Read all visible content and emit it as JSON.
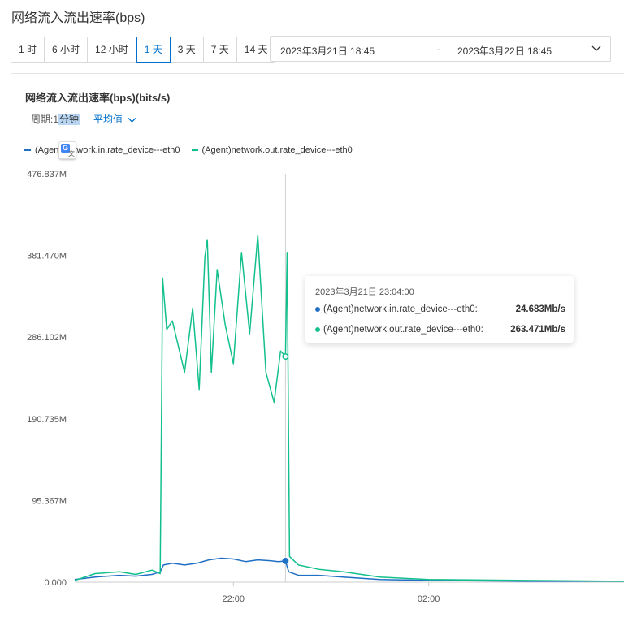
{
  "page_title": "网络流入流出速率(bps)",
  "time_ranges": [
    {
      "label": "1 时",
      "active": false
    },
    {
      "label": "6 小时",
      "active": false
    },
    {
      "label": "12 小时",
      "active": false
    },
    {
      "label": "1 天",
      "active": true
    },
    {
      "label": "3 天",
      "active": false
    },
    {
      "label": "7 天",
      "active": false
    },
    {
      "label": "14 天",
      "active": false
    }
  ],
  "date_range": {
    "start": "2023年3月21日 18:45",
    "separator": "-",
    "end": "2023年3月22日 18:45"
  },
  "chart_title": "网络流入流出速率(bps)(bits/s)",
  "period": {
    "label": "周期:1",
    "value": "分钟"
  },
  "aggregation": "平均值",
  "colors": {
    "in": "#1f6fc5",
    "out": "#13c08d",
    "accent": "#0070cc"
  },
  "tooltip": {
    "time": "2023年3月21日 23:04:00",
    "rows": [
      {
        "name": "(Agent)network.in.rate_device---eth0:",
        "value": "24.683Mb/s"
      },
      {
        "name": "(Agent)network.out.rate_device---eth0:",
        "value": "263.471Mb/s"
      }
    ]
  },
  "chart_data": {
    "type": "line",
    "title": "网络流入流出速率(bps)(bits/s)",
    "ylabel": "",
    "xlabel": "",
    "ylim": [
      0,
      476.837
    ],
    "y_unit": "M",
    "y_ticks": [
      "0.000",
      "95.367M",
      "190.735M",
      "286.102M",
      "381.470M",
      "476.837M"
    ],
    "x_ticks": [
      "22:00",
      "02:00"
    ],
    "x_range": [
      "2023-03-21 18:45",
      "2023-03-22 06:00"
    ],
    "legend_position": "top-left",
    "grid": false,
    "series": [
      {
        "name": "(Agent)network.in.rate_device---eth0",
        "color": "#1f6fc5",
        "points": [
          [
            "2023-03-21 18:45",
            3
          ],
          [
            "2023-03-21 19:10",
            6
          ],
          [
            "2023-03-21 19:40",
            8
          ],
          [
            "2023-03-21 20:00",
            7
          ],
          [
            "2023-03-21 20:20",
            9
          ],
          [
            "2023-03-21 20:30",
            12
          ],
          [
            "2023-03-21 20:34",
            20
          ],
          [
            "2023-03-21 20:45",
            22
          ],
          [
            "2023-03-21 21:00",
            20
          ],
          [
            "2023-03-21 21:15",
            22
          ],
          [
            "2023-03-21 21:30",
            26
          ],
          [
            "2023-03-21 21:45",
            28
          ],
          [
            "2023-03-21 22:00",
            27
          ],
          [
            "2023-03-21 22:15",
            24
          ],
          [
            "2023-03-21 22:30",
            26
          ],
          [
            "2023-03-21 22:45",
            25
          ],
          [
            "2023-03-21 22:55",
            24
          ],
          [
            "2023-03-21 23:04",
            24.683
          ],
          [
            "2023-03-21 23:08",
            12
          ],
          [
            "2023-03-21 23:20",
            8
          ],
          [
            "2023-03-21 23:45",
            8
          ],
          [
            "2023-03-22 00:15",
            6
          ],
          [
            "2023-03-22 01:00",
            3
          ],
          [
            "2023-03-22 02:00",
            2
          ],
          [
            "2023-03-22 04:00",
            1
          ],
          [
            "2023-03-22 06:00",
            1
          ]
        ]
      },
      {
        "name": "(Agent)network.out.rate_device---eth0",
        "color": "#13c08d",
        "points": [
          [
            "2023-03-21 18:45",
            2
          ],
          [
            "2023-03-21 19:10",
            10
          ],
          [
            "2023-03-21 19:40",
            12
          ],
          [
            "2023-03-21 20:00",
            9
          ],
          [
            "2023-03-21 20:20",
            14
          ],
          [
            "2023-03-21 20:30",
            10
          ],
          [
            "2023-03-21 20:33",
            355
          ],
          [
            "2023-03-21 20:38",
            295
          ],
          [
            "2023-03-21 20:45",
            305
          ],
          [
            "2023-03-21 21:00",
            245
          ],
          [
            "2023-03-21 21:10",
            320
          ],
          [
            "2023-03-21 21:18",
            225
          ],
          [
            "2023-03-21 21:25",
            380
          ],
          [
            "2023-03-21 21:28",
            400
          ],
          [
            "2023-03-21 21:33",
            245
          ],
          [
            "2023-03-21 21:40",
            365
          ],
          [
            "2023-03-21 21:50",
            300
          ],
          [
            "2023-03-21 22:00",
            255
          ],
          [
            "2023-03-21 22:10",
            385
          ],
          [
            "2023-03-21 22:20",
            290
          ],
          [
            "2023-03-21 22:30",
            405
          ],
          [
            "2023-03-21 22:40",
            245
          ],
          [
            "2023-03-21 22:50",
            210
          ],
          [
            "2023-03-21 22:58",
            270
          ],
          [
            "2023-03-21 23:04",
            263.471
          ],
          [
            "2023-03-21 23:06",
            385
          ],
          [
            "2023-03-21 23:09",
            30
          ],
          [
            "2023-03-21 23:20",
            20
          ],
          [
            "2023-03-21 23:45",
            15
          ],
          [
            "2023-03-22 00:15",
            12
          ],
          [
            "2023-03-22 01:00",
            6
          ],
          [
            "2023-03-22 02:00",
            3
          ],
          [
            "2023-03-22 04:00",
            2
          ],
          [
            "2023-03-22 06:00",
            1
          ]
        ]
      }
    ],
    "crosshair_x": "2023-03-21 23:04"
  }
}
